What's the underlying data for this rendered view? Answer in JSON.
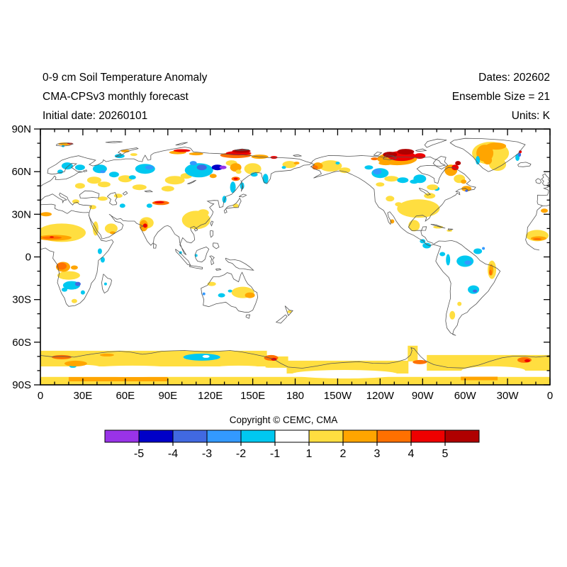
{
  "header": {
    "title": "0-9 cm Soil Temperature Anomaly",
    "subtitle": "CMA-CPSv3 monthly forecast",
    "initial_date": "Initial date: 20260101",
    "dates": "Dates: 202602",
    "ensemble": "Ensemble Size = 21",
    "units": "Units: K"
  },
  "footer": {
    "copyright": "Copyright © CEMC, CMA"
  },
  "chart_data": {
    "type": "heatmap",
    "title": "0-9 cm Soil Temperature Anomaly",
    "units": "K",
    "projection": "equirectangular-pacific-centered",
    "lon_range": [
      0,
      360
    ],
    "lat_range": [
      -90,
      90
    ],
    "grid": false,
    "x_ticks": {
      "major_deg": 30,
      "minor_deg": 10,
      "values": [
        0,
        30,
        60,
        90,
        120,
        150,
        180,
        210,
        240,
        270,
        300,
        330,
        360
      ],
      "labels": [
        "0",
        "30E",
        "60E",
        "90E",
        "120E",
        "150E",
        "180",
        "150W",
        "120W",
        "90W",
        "60W",
        "30W",
        "0"
      ]
    },
    "y_ticks": {
      "major_deg": 30,
      "minor_deg": 10,
      "values": [
        90,
        60,
        30,
        0,
        -30,
        -60,
        -90
      ],
      "labels": [
        "90N",
        "60N",
        "30N",
        "0",
        "30S",
        "60S",
        "90S"
      ]
    },
    "colorbar": {
      "levels": [
        -5,
        -4,
        -3,
        -2,
        -1,
        1,
        2,
        3,
        4,
        5
      ],
      "colors": [
        "#9933E8",
        "#0000C8",
        "#4169E1",
        "#3399FF",
        "#00C8F0",
        "#FFFFFF",
        "#FFDE40",
        "#FFA500",
        "#FF7000",
        "#EE0000",
        "#B00000"
      ],
      "tick_labels": [
        "-5",
        "-4",
        "-3",
        "-2",
        "-1",
        "1",
        "2",
        "3",
        "4",
        "5"
      ]
    },
    "anomaly_regions": [
      [
        80,
        -71.5,
        160,
        11,
        1.5,
        "r"
      ],
      [
        167,
        -74,
        16,
        8,
        1.5,
        "r"
      ],
      [
        217,
        -77.5,
        86,
        9,
        1.5,
        "r"
      ],
      [
        263,
        -68,
        7,
        11,
        1.5,
        "r"
      ],
      [
        317,
        -74.5,
        88,
        11,
        1.5,
        "r"
      ],
      [
        180,
        -87.2,
        360,
        5.6,
        1.5,
        "r"
      ],
      [
        65,
        -80.5,
        80,
        8,
        0
      ],
      [
        140,
        -80,
        50,
        7,
        0
      ],
      [
        215,
        -82.5,
        75,
        6,
        0
      ],
      [
        320,
        -80,
        45,
        6,
        0
      ],
      [
        32,
        -79,
        25,
        6,
        0
      ],
      [
        114,
        -70.5,
        26,
        5,
        -1.5
      ],
      [
        117,
        -70,
        5,
        2,
        0
      ],
      [
        23,
        -77,
        5,
        2,
        -1.5
      ],
      [
        15,
        -70.5,
        14,
        3,
        3.5
      ],
      [
        25,
        -75,
        16,
        4,
        2.5
      ],
      [
        47,
        -69,
        10,
        2,
        2.5
      ],
      [
        163,
        -71,
        10,
        4,
        3.5
      ],
      [
        165,
        -72,
        4,
        2,
        4.5
      ],
      [
        268,
        -74,
        10,
        3,
        3.5
      ],
      [
        342,
        -72.5,
        10,
        4,
        3.5
      ],
      [
        344,
        -73,
        4,
        2,
        4.5
      ],
      [
        55,
        -86,
        70,
        3,
        2.5,
        "r"
      ],
      [
        310,
        -85.5,
        26,
        2.5,
        2.5,
        "r"
      ],
      [
        15,
        17,
        34,
        13,
        1.5
      ],
      [
        10,
        13.5,
        24,
        4,
        2.5
      ],
      [
        8,
        13.5,
        14,
        2,
        3.5
      ],
      [
        8,
        14,
        3,
        1,
        4.5
      ],
      [
        351,
        15,
        16,
        8,
        1.5
      ],
      [
        352,
        13,
        11,
        3,
        2.5
      ],
      [
        351,
        12.5,
        6,
        1.5,
        3.5
      ],
      [
        4,
        30,
        8,
        3,
        2.5
      ],
      [
        356,
        32.5,
        5,
        3,
        2.5
      ],
      [
        50,
        20,
        9,
        7,
        1.5
      ],
      [
        39,
        20,
        4,
        10,
        1.5
      ],
      [
        51,
        17,
        4,
        2,
        2.5
      ],
      [
        37,
        35,
        5,
        3,
        1.5
      ],
      [
        44,
        41,
        7,
        3,
        1.5
      ],
      [
        25,
        39,
        5,
        3,
        1.5
      ],
      [
        38,
        54,
        10,
        5,
        1.5
      ],
      [
        28,
        50,
        7,
        4,
        1.5
      ],
      [
        45,
        51,
        9,
        4,
        1.5
      ],
      [
        60,
        55,
        10,
        5,
        1.5
      ],
      [
        70,
        49,
        10,
        4,
        1.5
      ],
      [
        55,
        43,
        6,
        3,
        1.5
      ],
      [
        66,
        72,
        5,
        2,
        1.5
      ],
      [
        95,
        54,
        14,
        6,
        1.5
      ],
      [
        90,
        48,
        9,
        4,
        1.5
      ],
      [
        103,
        57,
        8,
        4,
        1.5
      ],
      [
        150,
        62,
        12,
        8,
        1.5
      ],
      [
        135,
        66,
        8,
        4,
        1.5
      ],
      [
        176,
        65,
        10,
        5,
        1.5
      ],
      [
        181,
        66,
        4,
        2,
        2.5
      ],
      [
        110,
        26,
        20,
        13,
        1.5
      ],
      [
        115,
        31,
        8,
        5,
        1.5
      ],
      [
        138,
        36,
        4,
        3,
        1.5
      ],
      [
        75,
        24,
        10,
        8,
        1.5
      ],
      [
        73,
        22,
        6,
        8,
        2.5
      ],
      [
        74,
        22,
        3,
        3,
        4.5
      ],
      [
        85,
        38,
        12,
        3,
        3.5
      ],
      [
        84,
        38.5,
        7,
        1.5,
        4.5
      ],
      [
        122,
        57,
        5,
        3,
        2.5
      ],
      [
        138,
        63,
        8,
        6,
        2.5
      ],
      [
        140,
        60,
        4,
        3,
        1.5
      ],
      [
        138,
        55,
        6,
        3,
        3.5
      ],
      [
        138,
        55,
        3,
        1.5,
        4.5
      ],
      [
        60,
        74.5,
        6,
        2,
        2.5
      ],
      [
        97,
        73.5,
        12,
        2.5,
        2.5
      ],
      [
        100,
        74.8,
        12,
        2,
        4.5
      ],
      [
        110,
        72.5,
        10,
        2,
        2.5
      ],
      [
        138,
        71.5,
        22,
        4,
        3.5
      ],
      [
        140,
        73,
        18,
        3,
        4.5
      ],
      [
        142,
        74.5,
        13,
        2.5,
        5.5
      ],
      [
        155,
        70.5,
        12,
        3,
        2.5
      ],
      [
        165,
        70,
        5,
        2,
        4.5
      ],
      [
        17,
        79.5,
        9,
        2,
        2.5
      ],
      [
        21,
        79.8,
        4,
        1,
        4.5
      ],
      [
        16,
        78,
        2,
        1.5,
        -1.5
      ],
      [
        19,
        64,
        8,
        5,
        -1.5
      ],
      [
        14,
        60,
        4,
        3,
        -1.5
      ],
      [
        28,
        63,
        7,
        4,
        -1.5
      ],
      [
        42,
        62,
        10,
        6,
        -1.5
      ],
      [
        52,
        58,
        7,
        4,
        -1.5
      ],
      [
        44,
        60,
        4,
        2,
        -2.5
      ],
      [
        56,
        71,
        7,
        3,
        -1.5
      ],
      [
        74,
        62,
        14,
        7,
        -1.5
      ],
      [
        77,
        63,
        6,
        3,
        -2.5
      ],
      [
        65,
        56,
        5,
        3,
        -1.5
      ],
      [
        58,
        36,
        4,
        3,
        -1.5
      ],
      [
        77,
        36,
        4,
        3,
        -1.5
      ],
      [
        112,
        61,
        20,
        10,
        -1.5
      ],
      [
        114,
        63,
        7,
        4,
        -3.5
      ],
      [
        125,
        63,
        8,
        4,
        -4.5
      ],
      [
        129,
        63,
        5,
        2.5,
        -5.5
      ],
      [
        108,
        66,
        5,
        3,
        -2.5
      ],
      [
        136,
        49,
        4,
        8,
        -1.5
      ],
      [
        142.5,
        50,
        3,
        5,
        -1.5
      ],
      [
        130,
        40.5,
        3,
        5,
        -1.5
      ],
      [
        159,
        55,
        4,
        7,
        -1.5
      ],
      [
        151,
        58,
        5,
        3,
        -1.5
      ],
      [
        172,
        63,
        3,
        2,
        -1.5
      ],
      [
        20,
        -13,
        16,
        6,
        1.5
      ],
      [
        16,
        -7,
        10,
        7,
        2.5
      ],
      [
        15,
        -6.5,
        7,
        5,
        3.5
      ],
      [
        24,
        -7.5,
        5,
        3,
        2.5
      ],
      [
        24,
        -31,
        4,
        3,
        1.5
      ],
      [
        22,
        -20,
        12,
        6,
        -1.5
      ],
      [
        26.5,
        -19,
        4,
        3,
        -3.5
      ],
      [
        17,
        -23,
        4,
        3,
        -1.5
      ],
      [
        30,
        -25,
        3,
        3,
        -1.5
      ],
      [
        46,
        -19,
        2,
        2,
        -1.5
      ],
      [
        42,
        4,
        3,
        4,
        -1.5
      ],
      [
        44,
        -2,
        3,
        4,
        -1.5
      ],
      [
        143,
        -25,
        16,
        8,
        1.5
      ],
      [
        148,
        -27,
        7,
        4,
        2.5
      ],
      [
        121,
        -19,
        6,
        3,
        1.5
      ],
      [
        128,
        -27,
        5,
        3,
        -1.5
      ],
      [
        134,
        -24,
        3,
        2,
        -1.5
      ],
      [
        115.5,
        -26,
        2,
        2,
        -2.5
      ],
      [
        176,
        -38.5,
        3,
        2,
        1.5
      ],
      [
        99,
        3,
        2,
        2,
        -1.5
      ],
      [
        110,
        1,
        2,
        2,
        -1.5
      ],
      [
        205,
        64,
        16,
        8,
        1.5
      ],
      [
        196,
        64,
        7,
        5,
        2.5
      ],
      [
        194,
        63,
        4,
        3,
        3.5
      ],
      [
        215,
        61,
        8,
        4,
        1.5
      ],
      [
        210,
        66,
        3,
        2,
        -1.5
      ],
      [
        248,
        55,
        10,
        4,
        1.5
      ],
      [
        240,
        51,
        6,
        3,
        1.5
      ],
      [
        240,
        59,
        12,
        7,
        -1.5
      ],
      [
        238,
        60,
        6,
        4,
        -2.5
      ],
      [
        232,
        63,
        6,
        3,
        -1.5
      ],
      [
        268,
        55,
        9,
        6,
        -1.5
      ],
      [
        256,
        54,
        8,
        4,
        -1.5
      ],
      [
        264,
        53,
        6,
        3,
        -1.5
      ],
      [
        280,
        48,
        4,
        3,
        -1.5
      ],
      [
        275,
        43,
        8,
        4,
        1.5
      ],
      [
        252,
        69,
        28,
        9,
        2.5
      ],
      [
        244,
        66,
        10,
        3,
        2.5
      ],
      [
        255,
        71,
        20,
        7,
        4.5
      ],
      [
        247,
        72,
        10,
        4,
        5.5
      ],
      [
        258,
        74,
        12,
        4,
        5.5
      ],
      [
        268,
        71,
        8,
        4,
        4.5
      ],
      [
        236,
        69,
        5,
        2,
        3.5
      ],
      [
        290,
        61,
        9,
        8,
        2.5
      ],
      [
        293,
        63,
        5,
        4,
        4.5
      ],
      [
        295,
        66,
        4,
        3,
        5.5
      ],
      [
        296,
        55,
        8,
        6,
        1.5
      ],
      [
        299,
        53,
        4,
        3,
        2.5
      ],
      [
        277,
        49,
        8,
        4,
        1.5
      ],
      [
        301,
        48,
        7,
        4,
        2.5
      ],
      [
        301,
        46.5,
        2,
        1.5,
        -3.5
      ],
      [
        267,
        34,
        30,
        13,
        1.5
      ],
      [
        264,
        22,
        8,
        8,
        1.5
      ],
      [
        248.5,
        25,
        3,
        3,
        2.5
      ],
      [
        247,
        41,
        6,
        4,
        1.5
      ],
      [
        253,
        37,
        5,
        3,
        1.5
      ],
      [
        281,
        21,
        7,
        2,
        1.5
      ],
      [
        289,
        18.5,
        4,
        1.5,
        1.5
      ],
      [
        273,
        8,
        6,
        4,
        -1.5
      ],
      [
        270,
        11,
        4,
        3,
        -1.5
      ],
      [
        284,
        2,
        4,
        3,
        -1.5
      ],
      [
        309,
        4,
        6,
        4,
        -1.5
      ],
      [
        313,
        6,
        2,
        2,
        -2.5
      ],
      [
        318,
        73,
        26,
        16,
        1.5
      ],
      [
        323,
        65,
        12,
        9,
        1.5
      ],
      [
        314,
        73,
        12,
        12,
        2.5
      ],
      [
        322,
        78,
        14,
        5,
        2.5
      ],
      [
        316,
        68,
        6,
        6,
        2.5
      ],
      [
        309,
        68,
        3,
        6,
        -1.5
      ],
      [
        337,
        70,
        3,
        5,
        -1.5
      ],
      [
        338.5,
        72,
        2,
        3,
        -3.5
      ],
      [
        339,
        74,
        2,
        2,
        4.5
      ],
      [
        300,
        -3,
        12,
        8,
        -1.5
      ],
      [
        302,
        -4,
        5,
        3,
        -2.5
      ],
      [
        288,
        -2,
        3,
        8,
        -1.5
      ],
      [
        306,
        -23,
        8,
        6,
        -1.5
      ],
      [
        307,
        -24,
        3,
        2,
        -3.5
      ],
      [
        319,
        -9,
        6,
        13,
        1.5
      ],
      [
        318.5,
        -9,
        3,
        8,
        2.5
      ],
      [
        318,
        -11,
        2,
        4,
        3.5
      ],
      [
        291,
        -41,
        4,
        6,
        1.5
      ],
      [
        296,
        -33,
        3,
        3,
        1.5
      ]
    ]
  }
}
